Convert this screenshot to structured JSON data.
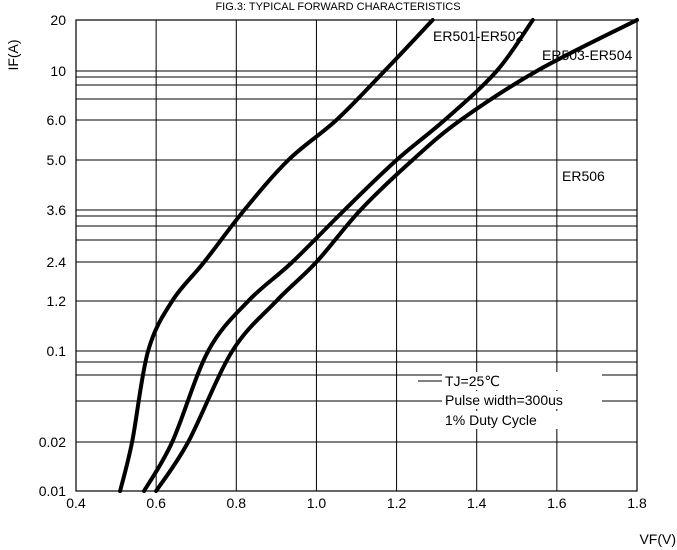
{
  "figure_title": "FIG.3: TYPICAL FORWARD CHARACTERISTICS",
  "chart_data": {
    "type": "line",
    "title": "FIG.3: TYPICAL FORWARD CHARACTERISTICS",
    "xlabel": "VF(V)",
    "ylabel": "IF(A)",
    "xlim": [
      0.4,
      1.8
    ],
    "x_ticks": [
      "0.4",
      "0.6",
      "0.8",
      "1.0",
      "1.2",
      "1.4",
      "1.6",
      "1.8"
    ],
    "y_scale": "log",
    "y_tick_labels": [
      "0.01",
      "0.02",
      "0.1",
      "1.2",
      "2.4",
      "3.6",
      "5.0",
      "6.0",
      "10",
      "20"
    ],
    "grid": true,
    "series": [
      {
        "name": "ER501-ER502",
        "x": [
          0.51,
          0.54,
          0.58,
          0.64,
          0.72,
          0.82,
          0.93,
          1.05,
          1.17,
          1.29
        ],
        "y": [
          0.01,
          0.02,
          0.1,
          1.2,
          2.4,
          3.6,
          5.0,
          6.0,
          10,
          20
        ]
      },
      {
        "name": "ER503-ER504",
        "x": [
          0.57,
          0.64,
          0.73,
          0.83,
          0.94,
          1.07,
          1.2,
          1.32,
          1.45,
          1.54
        ],
        "y": [
          0.01,
          0.02,
          0.1,
          1.2,
          2.4,
          3.6,
          5.0,
          6.0,
          10,
          20
        ]
      },
      {
        "name": "ER506",
        "x": [
          0.6,
          0.68,
          0.79,
          0.9,
          1.0,
          1.11,
          1.24,
          1.36,
          1.55,
          1.8
        ],
        "y": [
          0.01,
          0.02,
          0.1,
          1.2,
          2.4,
          3.6,
          5.0,
          6.0,
          10,
          20
        ]
      }
    ],
    "annotations": [
      "TJ=25℃",
      "Pulse width=300us",
      "1% Duty Cycle"
    ]
  }
}
